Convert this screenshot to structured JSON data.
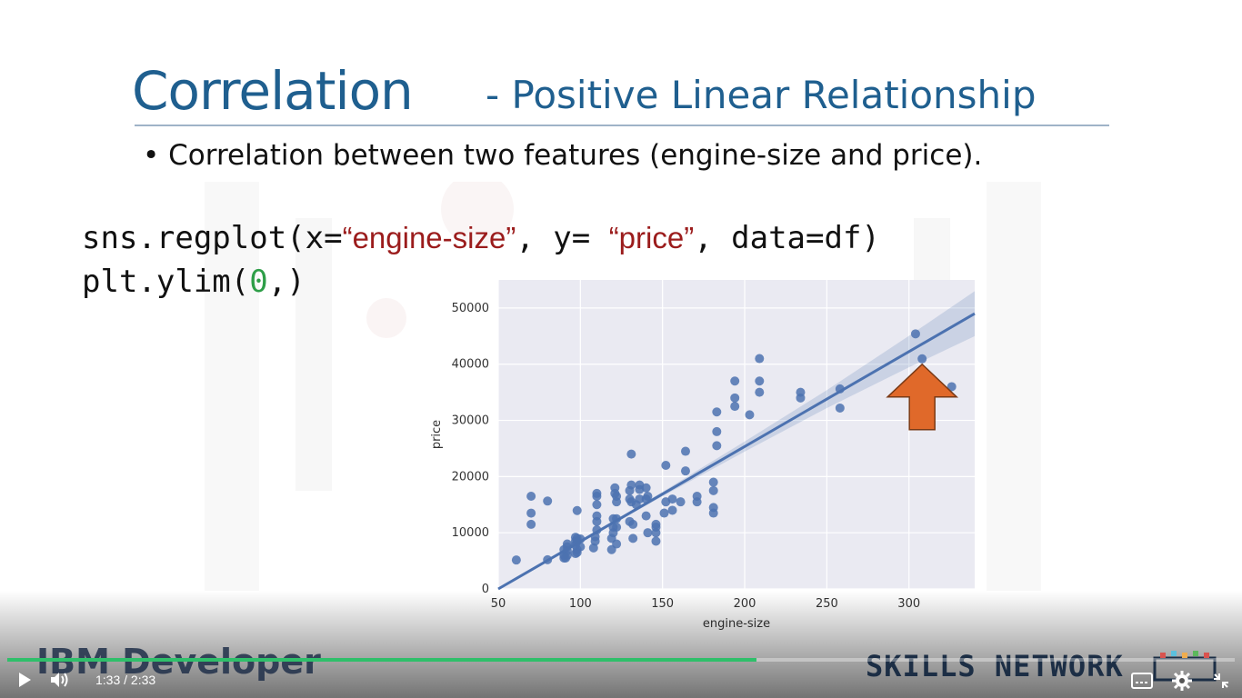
{
  "slide": {
    "title_main": "Correlation",
    "title_sub": "- Positive Linear Relationship",
    "bullet": "Correlation between two features (engine-size and price).",
    "code_line1": {
      "pre": "sns.regplot(x=",
      "s1": "“engine-size”",
      "mid": ", y= ",
      "s2": "“price”",
      "post": ", data=df)"
    },
    "code_line2": {
      "pre": "plt.ylim(",
      "num": "0",
      "post": ",)"
    }
  },
  "chart_data": {
    "type": "scatter",
    "xlabel": "engine-size",
    "ylabel": "price",
    "xlim": [
      50,
      340
    ],
    "ylim": [
      0,
      55000
    ],
    "xticks": [
      50,
      100,
      150,
      200,
      250,
      300
    ],
    "yticks": [
      0,
      10000,
      20000,
      30000,
      40000,
      50000
    ],
    "grid": true,
    "background": "#eaeaf2",
    "point_color": "#4c72b0",
    "points": [
      [
        61,
        5151
      ],
      [
        70,
        13495
      ],
      [
        70,
        11500
      ],
      [
        70,
        16500
      ],
      [
        80,
        5200
      ],
      [
        80,
        15645
      ],
      [
        90,
        5500
      ],
      [
        90,
        6000
      ],
      [
        90,
        7000
      ],
      [
        91,
        5500
      ],
      [
        92,
        6000
      ],
      [
        92,
        6800
      ],
      [
        92,
        7500
      ],
      [
        92,
        8000
      ],
      [
        97,
        6300
      ],
      [
        97,
        7800
      ],
      [
        97,
        8500
      ],
      [
        97,
        9200
      ],
      [
        98,
        7000
      ],
      [
        98,
        8500
      ],
      [
        98,
        9000
      ],
      [
        98,
        6500
      ],
      [
        98,
        13950
      ],
      [
        100,
        7500
      ],
      [
        100,
        8900
      ],
      [
        108,
        7300
      ],
      [
        109,
        8500
      ],
      [
        109,
        9300
      ],
      [
        110,
        10500
      ],
      [
        110,
        12000
      ],
      [
        110,
        13000
      ],
      [
        110,
        16500
      ],
      [
        110,
        15000
      ],
      [
        110,
        17000
      ],
      [
        119,
        7000
      ],
      [
        119,
        9000
      ],
      [
        120,
        10000
      ],
      [
        120,
        11000
      ],
      [
        120,
        12500
      ],
      [
        121,
        17000
      ],
      [
        121,
        18000
      ],
      [
        122,
        8000
      ],
      [
        122,
        11000
      ],
      [
        122,
        12500
      ],
      [
        122,
        15500
      ],
      [
        122,
        16500
      ],
      [
        130,
        12000
      ],
      [
        130,
        16000
      ],
      [
        130,
        17500
      ],
      [
        131,
        15500
      ],
      [
        131,
        18500
      ],
      [
        131,
        24000
      ],
      [
        132,
        9000
      ],
      [
        132,
        11500
      ],
      [
        134,
        15000
      ],
      [
        136,
        16000
      ],
      [
        136,
        17700
      ],
      [
        136,
        18500
      ],
      [
        140,
        13000
      ],
      [
        140,
        16000
      ],
      [
        140,
        18000
      ],
      [
        141,
        10000
      ],
      [
        141,
        16500
      ],
      [
        146,
        8500
      ],
      [
        146,
        10000
      ],
      [
        146,
        11500
      ],
      [
        146,
        11000
      ],
      [
        151,
        13500
      ],
      [
        152,
        15500
      ],
      [
        152,
        22000
      ],
      [
        156,
        14000
      ],
      [
        156,
        16000
      ],
      [
        161,
        15500
      ],
      [
        164,
        21000
      ],
      [
        164,
        24500
      ],
      [
        171,
        15500
      ],
      [
        171,
        16500
      ],
      [
        181,
        13500
      ],
      [
        181,
        14500
      ],
      [
        181,
        17500
      ],
      [
        181,
        19000
      ],
      [
        183,
        25500
      ],
      [
        183,
        28000
      ],
      [
        183,
        31500
      ],
      [
        194,
        32500
      ],
      [
        194,
        34000
      ],
      [
        194,
        37000
      ],
      [
        203,
        31000
      ],
      [
        209,
        35000
      ],
      [
        209,
        37000
      ],
      [
        209,
        41000
      ],
      [
        234,
        34000
      ],
      [
        234,
        35000
      ],
      [
        258,
        32200
      ],
      [
        258,
        35600
      ],
      [
        304,
        45400
      ],
      [
        308,
        40960
      ],
      [
        326,
        36000
      ]
    ],
    "regression": {
      "x0": 50,
      "y0": 0,
      "x1": 340,
      "y1": 49000
    }
  },
  "player": {
    "brand_left": "IBM Developer",
    "brand_right": "SKILLS NETWORK",
    "current_time": "1:33",
    "separator": "/",
    "duration": "2:33",
    "progress": 0.61,
    "accent": "#2fbf6a",
    "icons": [
      "play-icon",
      "volume-icon",
      "captions-icon",
      "settings-icon",
      "exit-fullscreen-icon"
    ]
  }
}
